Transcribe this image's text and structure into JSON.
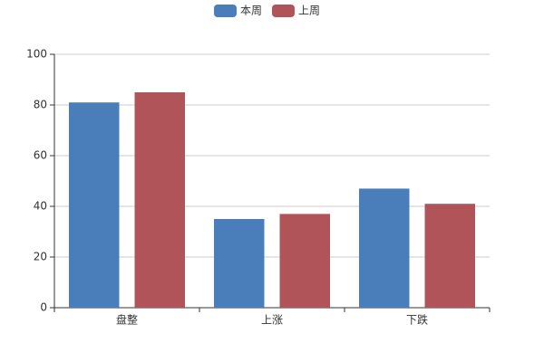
{
  "chart_data": {
    "type": "bar",
    "categories": [
      "盘整",
      "上涨",
      "下跌"
    ],
    "series": [
      {
        "name": "本周",
        "color": "#4a7ebb",
        "values": [
          81,
          35,
          47
        ]
      },
      {
        "name": "上周",
        "color": "#b0545a",
        "values": [
          85,
          37,
          41
        ]
      }
    ],
    "ylim": [
      0,
      100
    ],
    "yticks": [
      0,
      20,
      40,
      60,
      80,
      100
    ],
    "grid": true,
    "legend": "top"
  }
}
